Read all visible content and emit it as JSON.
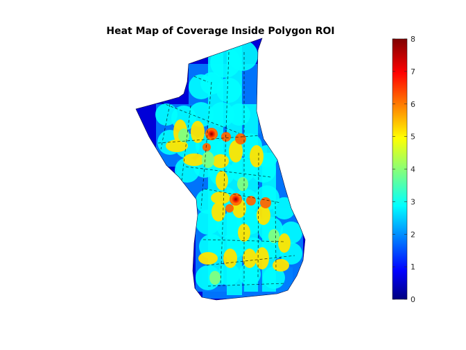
{
  "chart_data": {
    "type": "heatmap",
    "title": "Heat Map of Coverage Inside Polygon ROI",
    "xlabel": "",
    "ylabel": "",
    "colormap": "jet",
    "colorbar": {
      "min": 0,
      "max": 8,
      "ticks": [
        "0",
        "1",
        "2",
        "3",
        "4",
        "5",
        "6",
        "7",
        "8"
      ],
      "placement": "right"
    },
    "value_range": [
      0,
      8
    ],
    "background_value": 0,
    "typical_overlap_value": 3,
    "peak_value": 8,
    "peak_count": 2
  },
  "colors": {
    "background": "#ffffff",
    "outline": "#000000"
  }
}
